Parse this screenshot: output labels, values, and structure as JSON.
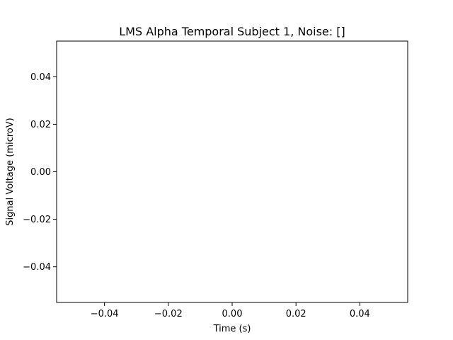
{
  "chart_data": {
    "type": "line",
    "title": "LMS Alpha Temporal Subject 1, Noise: []",
    "xlabel": "Time (s)",
    "ylabel": "Signal Voltage (microV)",
    "xlim": [
      -0.055,
      0.055
    ],
    "ylim": [
      -0.055,
      0.055
    ],
    "x_ticks": [
      -0.04,
      -0.02,
      0.0,
      0.02,
      0.04
    ],
    "x_tick_labels": [
      "−0.04",
      "−0.02",
      "0.00",
      "0.02",
      "0.04"
    ],
    "y_ticks": [
      -0.04,
      -0.02,
      0.0,
      0.02,
      0.04
    ],
    "y_tick_labels": [
      "−0.04",
      "−0.02",
      "0.00",
      "0.02",
      "0.04"
    ],
    "grid": false,
    "series": [
      {
        "x": [],
        "y": [],
        "color": "#1f77b4"
      }
    ]
  }
}
